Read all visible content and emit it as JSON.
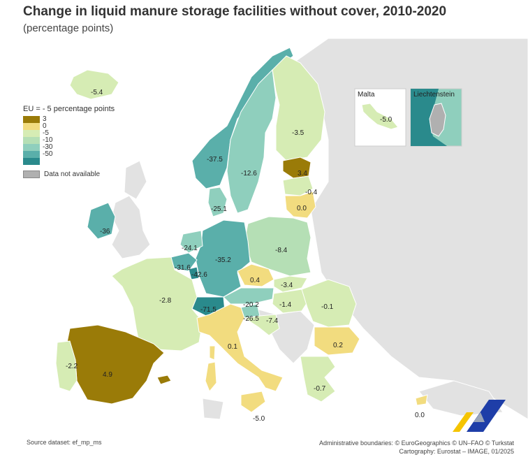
{
  "title": "Change in liquid manure storage facilities without cover, 2010-2020",
  "subtitle": "(percentage points)",
  "legend": {
    "title": "EU = - 5 percentage points",
    "classes": [
      {
        "label": "3",
        "color": "#9a7b08"
      },
      {
        "label": "0",
        "color": "#f2dc7f"
      },
      {
        "label": "-5",
        "color": "#d6ecb4"
      },
      {
        "label": "-10",
        "color": "#b5dfb5"
      },
      {
        "label": "-30",
        "color": "#8fcfbd"
      },
      {
        "label": "-50",
        "color": "#5aafaa"
      }
    ],
    "last_color": "#2a8a8c",
    "na_label": "Data not available",
    "na_color": "#b0b0b0"
  },
  "insets": {
    "malta": {
      "title": "Malta",
      "value": "-5.0"
    },
    "liechtenstein": {
      "title": "Liechtenstein"
    }
  },
  "chart_data": {
    "type": "choropleth",
    "unit": "percentage points",
    "regions": [
      {
        "value": "-5.4"
      },
      {
        "value": "-3.5"
      },
      {
        "value": "-37.5"
      },
      {
        "value": "-12.6"
      },
      {
        "value": "3.4"
      },
      {
        "value": "-0.4"
      },
      {
        "value": "0.0"
      },
      {
        "value": "-25.1"
      },
      {
        "value": "-36"
      },
      {
        "value": "-8.4"
      },
      {
        "value": "-24.1"
      },
      {
        "value": "-35.2"
      },
      {
        "value": "-31.6"
      },
      {
        "value": "-42.6"
      },
      {
        "value": "0.4"
      },
      {
        "value": "-3.4"
      },
      {
        "value": "-2.8"
      },
      {
        "value": "-71.5"
      },
      {
        "value": "-20.2"
      },
      {
        "value": "-1.4"
      },
      {
        "value": "-0.1"
      },
      {
        "value": "-26.5"
      },
      {
        "value": "-7.4"
      },
      {
        "value": "0.1"
      },
      {
        "value": "0.2"
      },
      {
        "value": "-2.2"
      },
      {
        "value": "4.9"
      },
      {
        "value": "-0.7"
      },
      {
        "value": "-5.0"
      },
      {
        "value": "0.0"
      }
    ]
  },
  "footer": {
    "source": "Source dataset: ef_mp_ms",
    "boundaries": "Administrative boundaries: © EuroGeographics © UN–FAO © Turkstat",
    "cartography": "Cartography: Eurostat – IMAGE, 01/2025"
  }
}
